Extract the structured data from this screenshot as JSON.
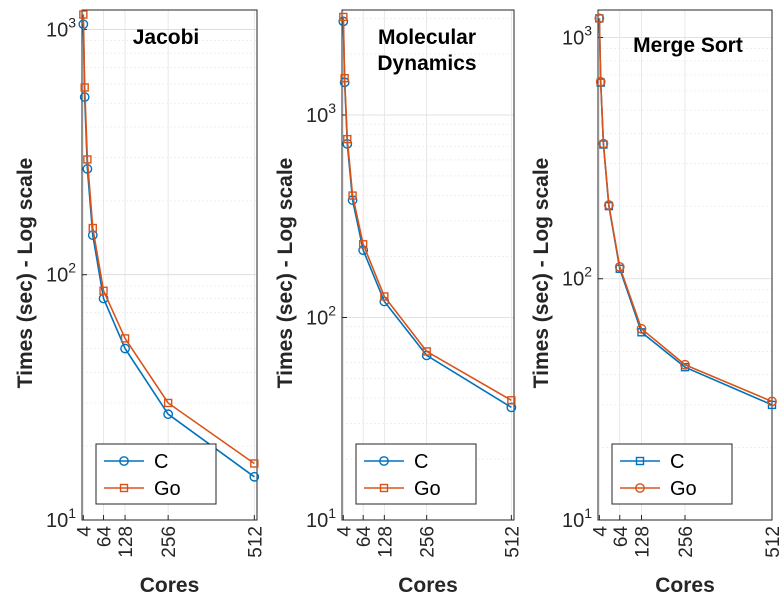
{
  "chart_data": [
    {
      "type": "line",
      "title": "Jacobi",
      "xlabel": "Cores",
      "ylabel": "Times (sec) - Log scale",
      "yscale": "log",
      "xlim": [
        0,
        520
      ],
      "ylim": [
        10,
        1200
      ],
      "grid": true,
      "x_ticks": [
        4,
        64,
        128,
        256,
        512
      ],
      "y_ticks": [
        10,
        100,
        1000
      ],
      "legend_position": "bottom-right",
      "series": [
        {
          "name": "C",
          "color": "#0072BD",
          "marker": "circle",
          "x": [
            4,
            8,
            16,
            32,
            64,
            128,
            256,
            512
          ],
          "y": [
            1050,
            530,
            270,
            145,
            80,
            50,
            27,
            15
          ]
        },
        {
          "name": "Go",
          "color": "#D95319",
          "marker": "square",
          "x": [
            4,
            8,
            16,
            32,
            64,
            128,
            256,
            512
          ],
          "y": [
            1150,
            580,
            295,
            155,
            86,
            55,
            30,
            17
          ]
        }
      ]
    },
    {
      "type": "line",
      "title": "Molecular Dynamics",
      "xlabel": "Cores",
      "ylabel": "Times (sec) - Log scale",
      "yscale": "log",
      "xlim": [
        0,
        520
      ],
      "ylim": [
        10,
        3300
      ],
      "grid": true,
      "x_ticks": [
        4,
        64,
        128,
        256,
        512
      ],
      "y_ticks": [
        10,
        100,
        1000
      ],
      "legend_position": "bottom-right",
      "series": [
        {
          "name": "C",
          "color": "#0072BD",
          "marker": "circle",
          "x": [
            4,
            8,
            16,
            32,
            64,
            128,
            256,
            512
          ],
          "y": [
            2900,
            1450,
            720,
            380,
            215,
            120,
            65,
            36
          ]
        },
        {
          "name": "Go",
          "color": "#D95319",
          "marker": "square",
          "x": [
            4,
            8,
            16,
            32,
            64,
            128,
            256,
            512
          ],
          "y": [
            3050,
            1520,
            760,
            400,
            230,
            127,
            68,
            39
          ]
        }
      ]
    },
    {
      "type": "line",
      "title": "Merge Sort",
      "xlabel": "Cores",
      "ylabel": "Times (sec) - Log scale",
      "yscale": "log",
      "xlim": [
        0,
        512
      ],
      "ylim": [
        10,
        1300
      ],
      "grid": true,
      "x_ticks": [
        4,
        64,
        128,
        256,
        512
      ],
      "y_ticks": [
        10,
        100,
        1000
      ],
      "legend_position": "bottom-right",
      "series": [
        {
          "name": "C",
          "color": "#0072BD",
          "marker": "square",
          "x": [
            4,
            8,
            16,
            32,
            64,
            128,
            256,
            512
          ],
          "y": [
            1200,
            650,
            360,
            200,
            110,
            60,
            43,
            30
          ]
        },
        {
          "name": "Go",
          "color": "#D95319",
          "marker": "circle",
          "x": [
            4,
            8,
            16,
            32,
            64,
            128,
            256,
            512
          ],
          "y": [
            1200,
            655,
            363,
            202,
            112,
            62,
            44,
            31
          ]
        }
      ]
    }
  ]
}
